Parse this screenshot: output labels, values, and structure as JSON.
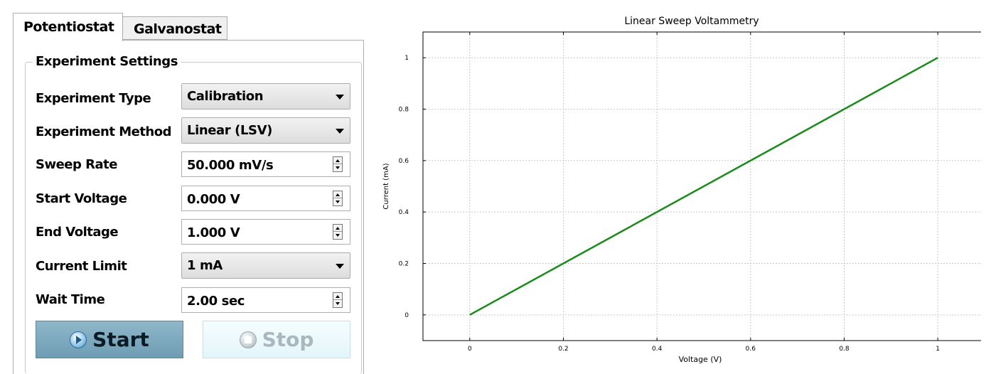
{
  "tabs": [
    {
      "label": "Potentiostat",
      "active": true
    },
    {
      "label": "Galvanostat",
      "active": false
    }
  ],
  "group_title": "Experiment Settings",
  "fields": {
    "experiment_type": {
      "label": "Experiment Type",
      "value": "Calibration"
    },
    "experiment_method": {
      "label": "Experiment Method",
      "value": "Linear (LSV)"
    },
    "sweep_rate": {
      "label": "Sweep Rate",
      "value": "50.000 mV/s"
    },
    "start_voltage": {
      "label": "Start Voltage",
      "value": "0.000 V"
    },
    "end_voltage": {
      "label": "End Voltage",
      "value": "1.000 V"
    },
    "current_limit": {
      "label": "Current Limit",
      "value": "1 mA"
    },
    "wait_time": {
      "label": "Wait Time",
      "value": "2.00 sec"
    }
  },
  "buttons": {
    "start_label": "Start",
    "stop_label": "Stop"
  },
  "colors": {
    "line": "#1a8a1a",
    "start_button": "#7fa9bd",
    "stop_button": "#e8f8fc"
  },
  "chart_data": {
    "type": "line",
    "title": "Linear Sweep Voltammetry",
    "xlabel": "Voltage (V)",
    "ylabel": "Current (mA)",
    "xlim": [
      -0.1,
      1.1
    ],
    "ylim": [
      -0.1,
      1.1
    ],
    "xticks": [
      0,
      0.2,
      0.4,
      0.6,
      0.8,
      1
    ],
    "xtick_labels": [
      "0",
      "0.2",
      "0.4",
      "0.6",
      "0.8",
      "1"
    ],
    "yticks": [
      0,
      0.2,
      0.4,
      0.6,
      0.8,
      1
    ],
    "ytick_labels": [
      "0",
      "0.2",
      "0.4",
      "0.6",
      "0.8",
      "1"
    ],
    "grid": true,
    "series": [
      {
        "x": [
          0,
          1
        ],
        "y": [
          0,
          1
        ]
      }
    ]
  }
}
